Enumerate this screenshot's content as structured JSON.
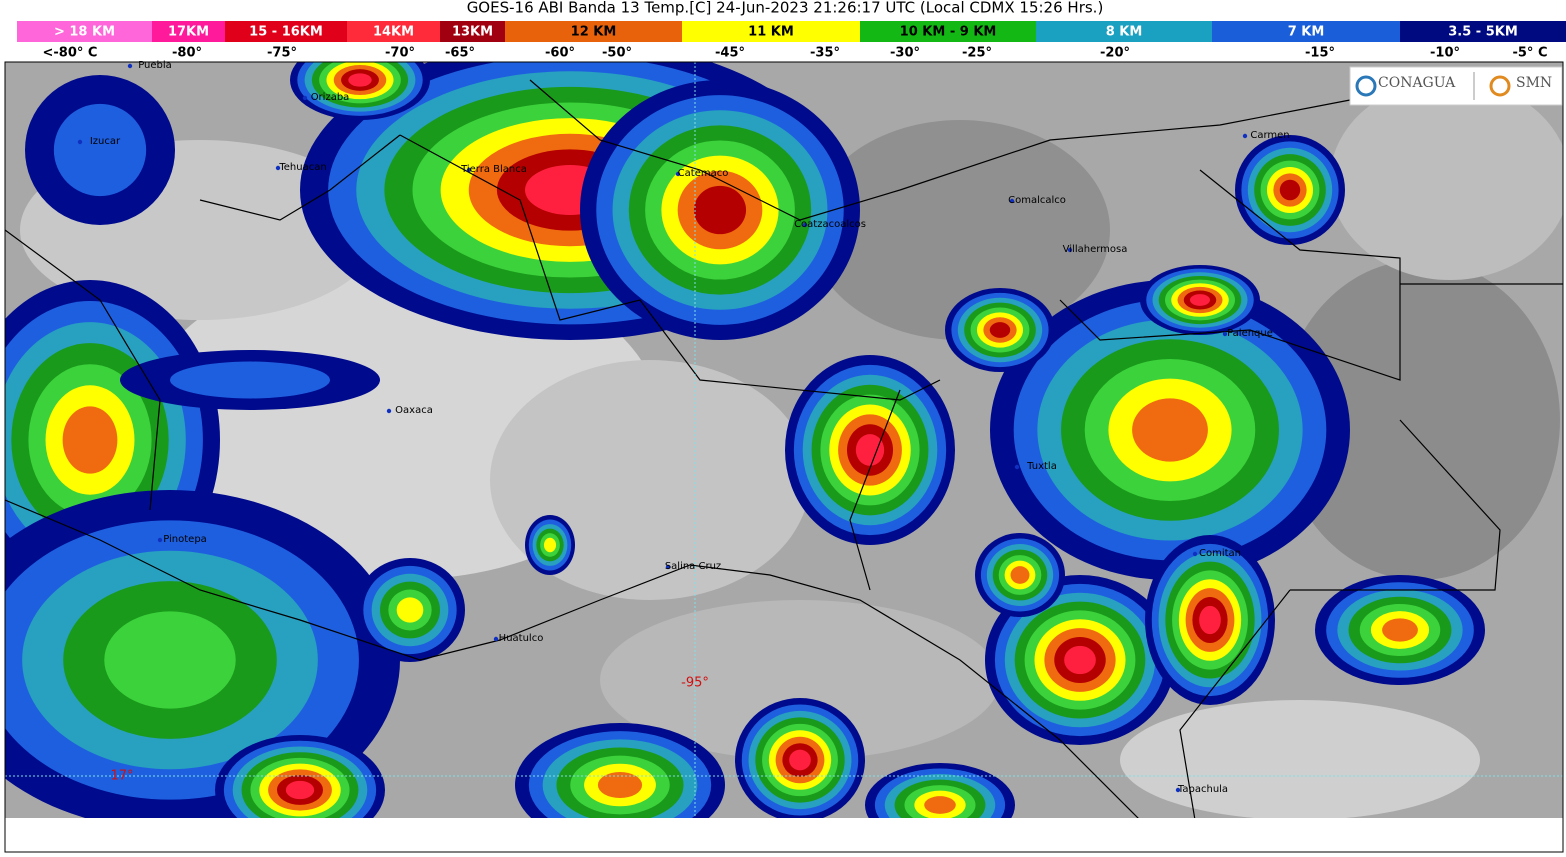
{
  "header": {
    "title": "GOES-16 ABI Banda 13 Temp.[C] 24-Jun-2023 21:26:17 UTC (Local CDMX  15:26 Hrs.)"
  },
  "legend": {
    "heights": [
      "> 18 KM",
      "17KM",
      "15 - 16KM",
      "14KM",
      "13KM",
      "12 KM",
      "11 KM",
      "10 KM - 9 KM",
      "8 KM",
      "7 KM",
      "3.5 - 5KM"
    ],
    "temperatures": [
      "<-80° C",
      "-80°",
      "-75°",
      "-70°",
      "-65°",
      "-60°",
      "-50°",
      "-45°",
      "-35°",
      "-30°",
      "-25°",
      "-20°",
      "-15°",
      "-10°",
      "-5° C"
    ]
  },
  "logos": [
    "CONAGUA",
    "SMN"
  ],
  "cities": [
    "Puebla",
    "Orizaba",
    "Izucar",
    "Tehuacan",
    "Tierra Blanca",
    "Catemaco",
    "Coatzacoalcos",
    "Carmen",
    "Comalcalco",
    "Villahermosa",
    "Palenque",
    "Oaxaca",
    "Tuxtla",
    "Pinotepa",
    "Salina Cruz",
    "Comitan",
    "Huatulco",
    "Tapachula"
  ],
  "grid_labels": [
    "-95°",
    "17°"
  ]
}
